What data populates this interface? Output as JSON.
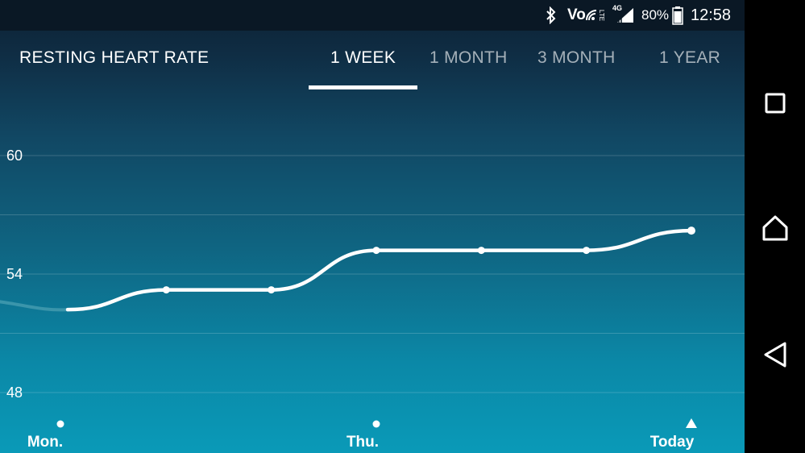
{
  "status_bar": {
    "volte_label": "Vo",
    "lte_label": "LTE",
    "network_label": "4G",
    "battery_percent": "80%",
    "battery_level": 0.8,
    "time": "12:58"
  },
  "header": {
    "title": "RESTING HEART RATE",
    "tabs": [
      {
        "label": "1 WEEK",
        "active": true
      },
      {
        "label": "1 MONTH",
        "active": false
      },
      {
        "label": "3 MONTH",
        "active": false
      },
      {
        "label": "1 YEAR",
        "active": false
      }
    ]
  },
  "chart_data": {
    "type": "line",
    "title": "",
    "ylim": [
      47,
      62
    ],
    "y_ticks": [
      60,
      54,
      48
    ],
    "gridlines": [
      60,
      57,
      54,
      51,
      48
    ],
    "x_labels": [
      "Mon.",
      "Thu.",
      "Today"
    ],
    "points": [
      {
        "day": "Mon.",
        "y": 52.2
      },
      {
        "day": "Tue.",
        "y": 53.2
      },
      {
        "day": "Wed.",
        "y": 53.2
      },
      {
        "day": "Thu.",
        "y": 55.2
      },
      {
        "day": "Fri.",
        "y": 55.2
      },
      {
        "day": "Sat.",
        "y": 55.2
      },
      {
        "day": "Today",
        "y": 56.2
      }
    ],
    "previous_value": 52.6,
    "today_marker": "triangle"
  },
  "colors": {
    "line": "#ffffff",
    "faded_line": "#3a95ab",
    "gridline": "rgba(255,255,255,0.18)"
  },
  "nav": {
    "recents_icon": "square-icon",
    "home_icon": "home-icon",
    "back_icon": "back-triangle-icon"
  }
}
